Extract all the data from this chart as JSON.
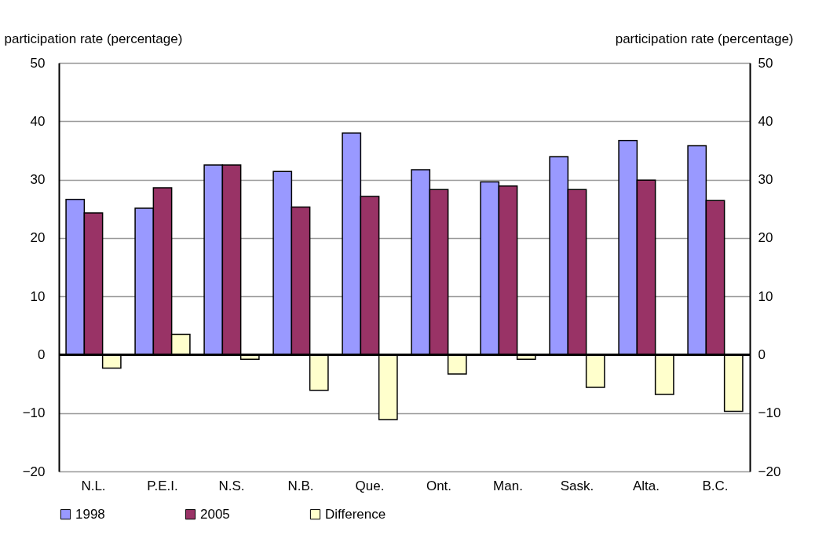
{
  "chart_data": {
    "type": "bar",
    "ylabel": "participation rate (percentage)",
    "y2label": "participation rate (percentage)",
    "categories": [
      "N.L.",
      "P.E.I.",
      "N.S.",
      "N.B.",
      "Que.",
      "Ont.",
      "Man.",
      "Sask.",
      "Alta.",
      "B.C."
    ],
    "series": [
      {
        "name": "1998",
        "color": "#9999ff",
        "values": [
          26.6,
          25.1,
          32.5,
          31.4,
          38.0,
          31.7,
          29.6,
          33.9,
          36.7,
          35.8
        ]
      },
      {
        "name": "2005",
        "color": "#993366",
        "values": [
          24.3,
          28.6,
          32.5,
          25.3,
          27.1,
          28.3,
          28.9,
          28.3,
          29.9,
          26.4
        ]
      },
      {
        "name": "Difference",
        "color": "#ffffcc",
        "values": [
          -2.3,
          3.5,
          -0.8,
          -6.1,
          -11.1,
          -3.3,
          -0.8,
          -5.6,
          -6.8,
          -9.7
        ]
      }
    ],
    "ylim": [
      -20,
      50
    ],
    "yticks": [
      -20,
      -10,
      0,
      10,
      20,
      30,
      40,
      50
    ],
    "y2lim": [
      -20,
      50
    ],
    "y2ticks": [
      -20,
      -10,
      0,
      10,
      20,
      30,
      40,
      50
    ],
    "grid": "y",
    "legend": "bottom left"
  }
}
